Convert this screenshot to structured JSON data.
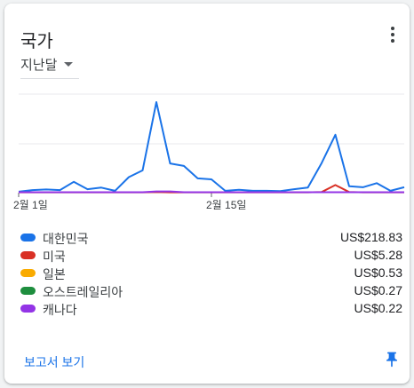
{
  "card": {
    "title": "국가",
    "menu_icon": "more-vert-icon",
    "period_label": "지난달",
    "report_link": "보고서 보기",
    "pin_icon": "pin-icon"
  },
  "colors": {
    "blue": "#1a73e8",
    "red": "#d93025",
    "yellow": "#f9ab00",
    "green": "#1e8e3e",
    "purple": "#9334e6"
  },
  "chart_data": {
    "type": "line",
    "x_tick_labels": [
      "2월 1일",
      "2월 15일"
    ],
    "x_tick_indices": [
      0,
      14
    ],
    "ylim": [
      0,
      31
    ],
    "grid": true,
    "series": [
      {
        "name": "대한민국",
        "color": "#1a73e8",
        "values": [
          0.3,
          0.8,
          1.0,
          0.8,
          3.4,
          1.1,
          1.6,
          0.6,
          4.9,
          7.0,
          28.5,
          9.2,
          8.4,
          4.5,
          4.2,
          0.6,
          0.9,
          0.6,
          0.6,
          0.5,
          1.1,
          1.6,
          9.3,
          18.2,
          2.0,
          1.7,
          3.0,
          0.6,
          1.7
        ]
      },
      {
        "name": "미국",
        "color": "#d93025",
        "values": [
          0.1,
          0.1,
          0.1,
          0.1,
          0.1,
          0.1,
          0.1,
          0.1,
          0.1,
          0.1,
          0.2,
          0.1,
          0.1,
          0.1,
          0.1,
          0.1,
          0.1,
          0.1,
          0.1,
          0.1,
          0.1,
          0.1,
          0.2,
          2.4,
          0.2,
          0.1,
          0.1,
          0.1,
          0.1
        ]
      },
      {
        "name": "캐나다",
        "color": "#9334e6",
        "values": [
          0.15,
          0.15,
          0.15,
          0.15,
          0.15,
          0.15,
          0.15,
          0.15,
          0.15,
          0.15,
          0.4,
          0.4,
          0.15,
          0.15,
          0.15,
          0.15,
          0.15,
          0.15,
          0.15,
          0.15,
          0.15,
          0.15,
          0.15,
          0.15,
          0.15,
          0.15,
          0.15,
          0.15,
          0.15
        ]
      }
    ]
  },
  "legend": [
    {
      "name": "대한민국",
      "value": "US$218.83",
      "color": "#1a73e8"
    },
    {
      "name": "미국",
      "value": "US$5.28",
      "color": "#d93025"
    },
    {
      "name": "일본",
      "value": "US$0.53",
      "color": "#f9ab00"
    },
    {
      "name": "오스트레일리아",
      "value": "US$0.27",
      "color": "#1e8e3e"
    },
    {
      "name": "캐나다",
      "value": "US$0.22",
      "color": "#9334e6"
    }
  ]
}
